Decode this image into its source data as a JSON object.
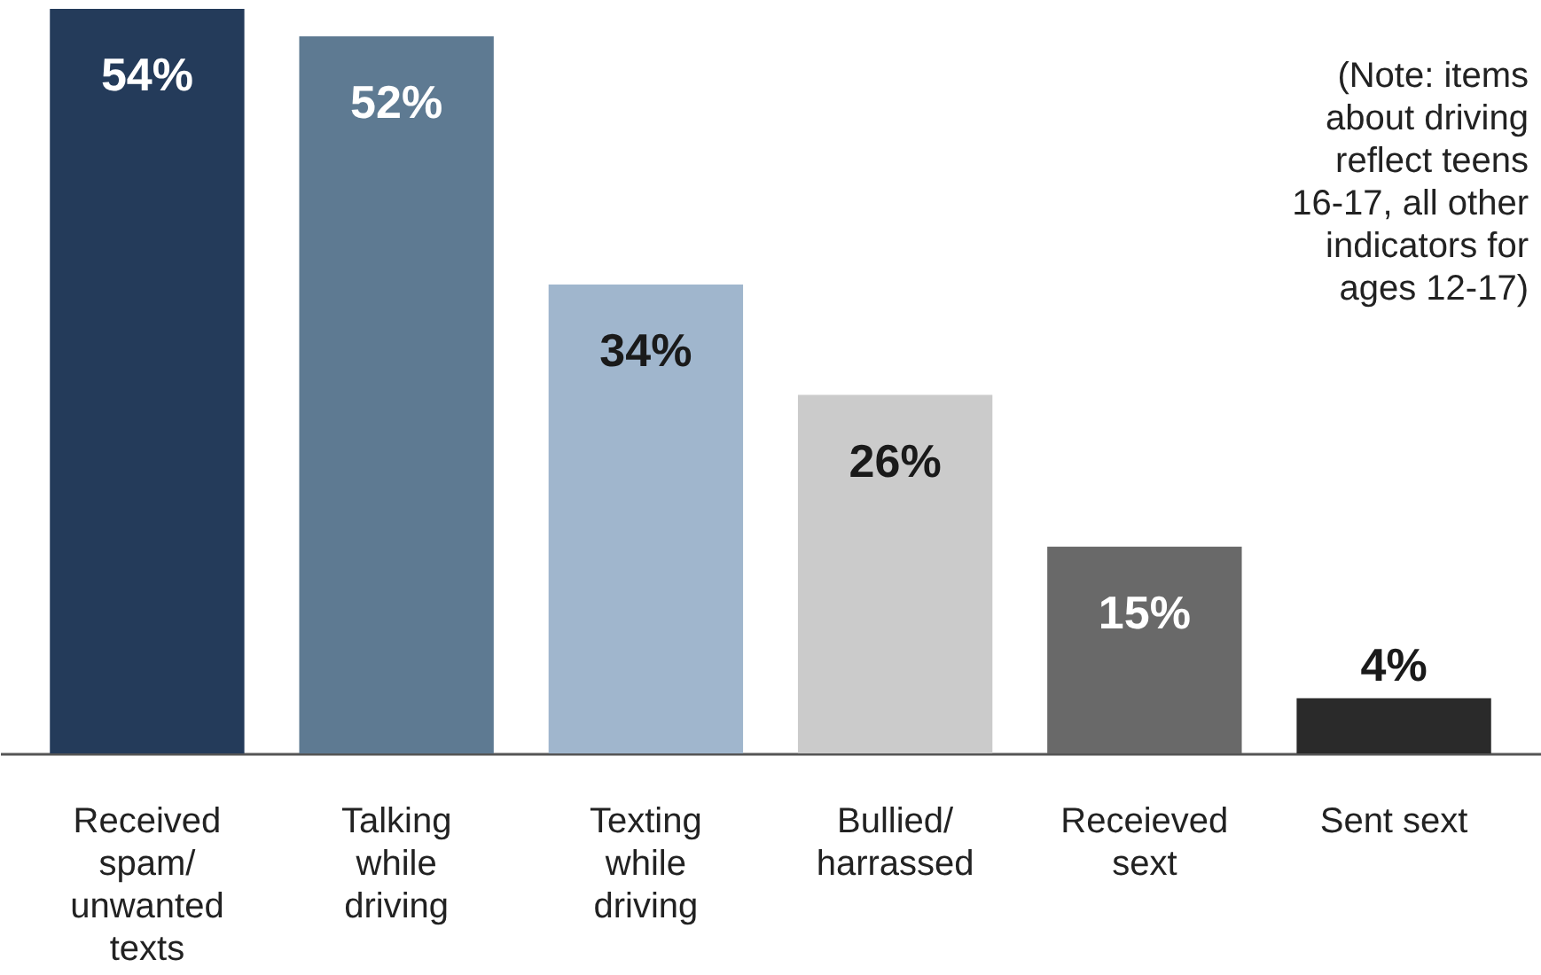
{
  "chart_data": {
    "type": "bar",
    "categories": [
      "Received\nspam/\nunwanted\ntexts",
      "Talking\nwhile\ndriving",
      "Texting\nwhile\ndriving",
      "Bullied/\nharrassed",
      "Receieved\nsext",
      "Sent sext"
    ],
    "values": [
      54,
      52,
      34,
      26,
      15,
      4
    ],
    "value_labels": [
      "54%",
      "52%",
      "34%",
      "26%",
      "15%",
      "4%"
    ],
    "colors": [
      "#243b5a",
      "#5e7a92",
      "#a0b6cd",
      "#cbcbcb",
      "#696969",
      "#2a2a2a"
    ],
    "annotations": [
      "(Note: items\nabout driving\nreflect teens\n16-17, all other\nindicators for\nages 12-17)"
    ],
    "grid": false
  }
}
